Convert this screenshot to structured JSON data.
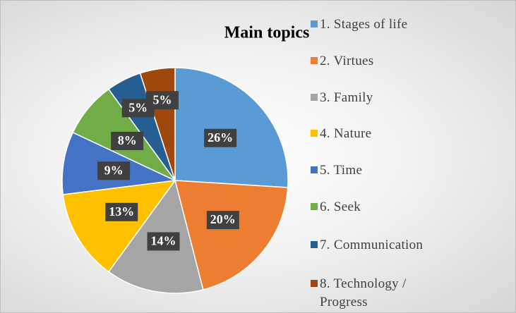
{
  "chart_data": {
    "type": "pie",
    "title": "Main topics",
    "categories": [
      "1. Stages of life",
      "2. Virtues",
      "3. Family",
      "4. Nature",
      "5. Time",
      "6. Seek",
      "7. Communication",
      "8. Technology / Progress"
    ],
    "values": [
      26,
      20,
      14,
      13,
      9,
      8,
      5,
      5
    ],
    "value_labels": [
      "26%",
      "20%",
      "14%",
      "13%",
      "9%",
      "8%",
      "5%",
      "5%"
    ],
    "colors": [
      "#5b9bd5",
      "#ed7d31",
      "#a5a5a5",
      "#ffc000",
      "#4472c4",
      "#70ad47",
      "#255e91",
      "#9e480e"
    ],
    "legend": "right"
  }
}
